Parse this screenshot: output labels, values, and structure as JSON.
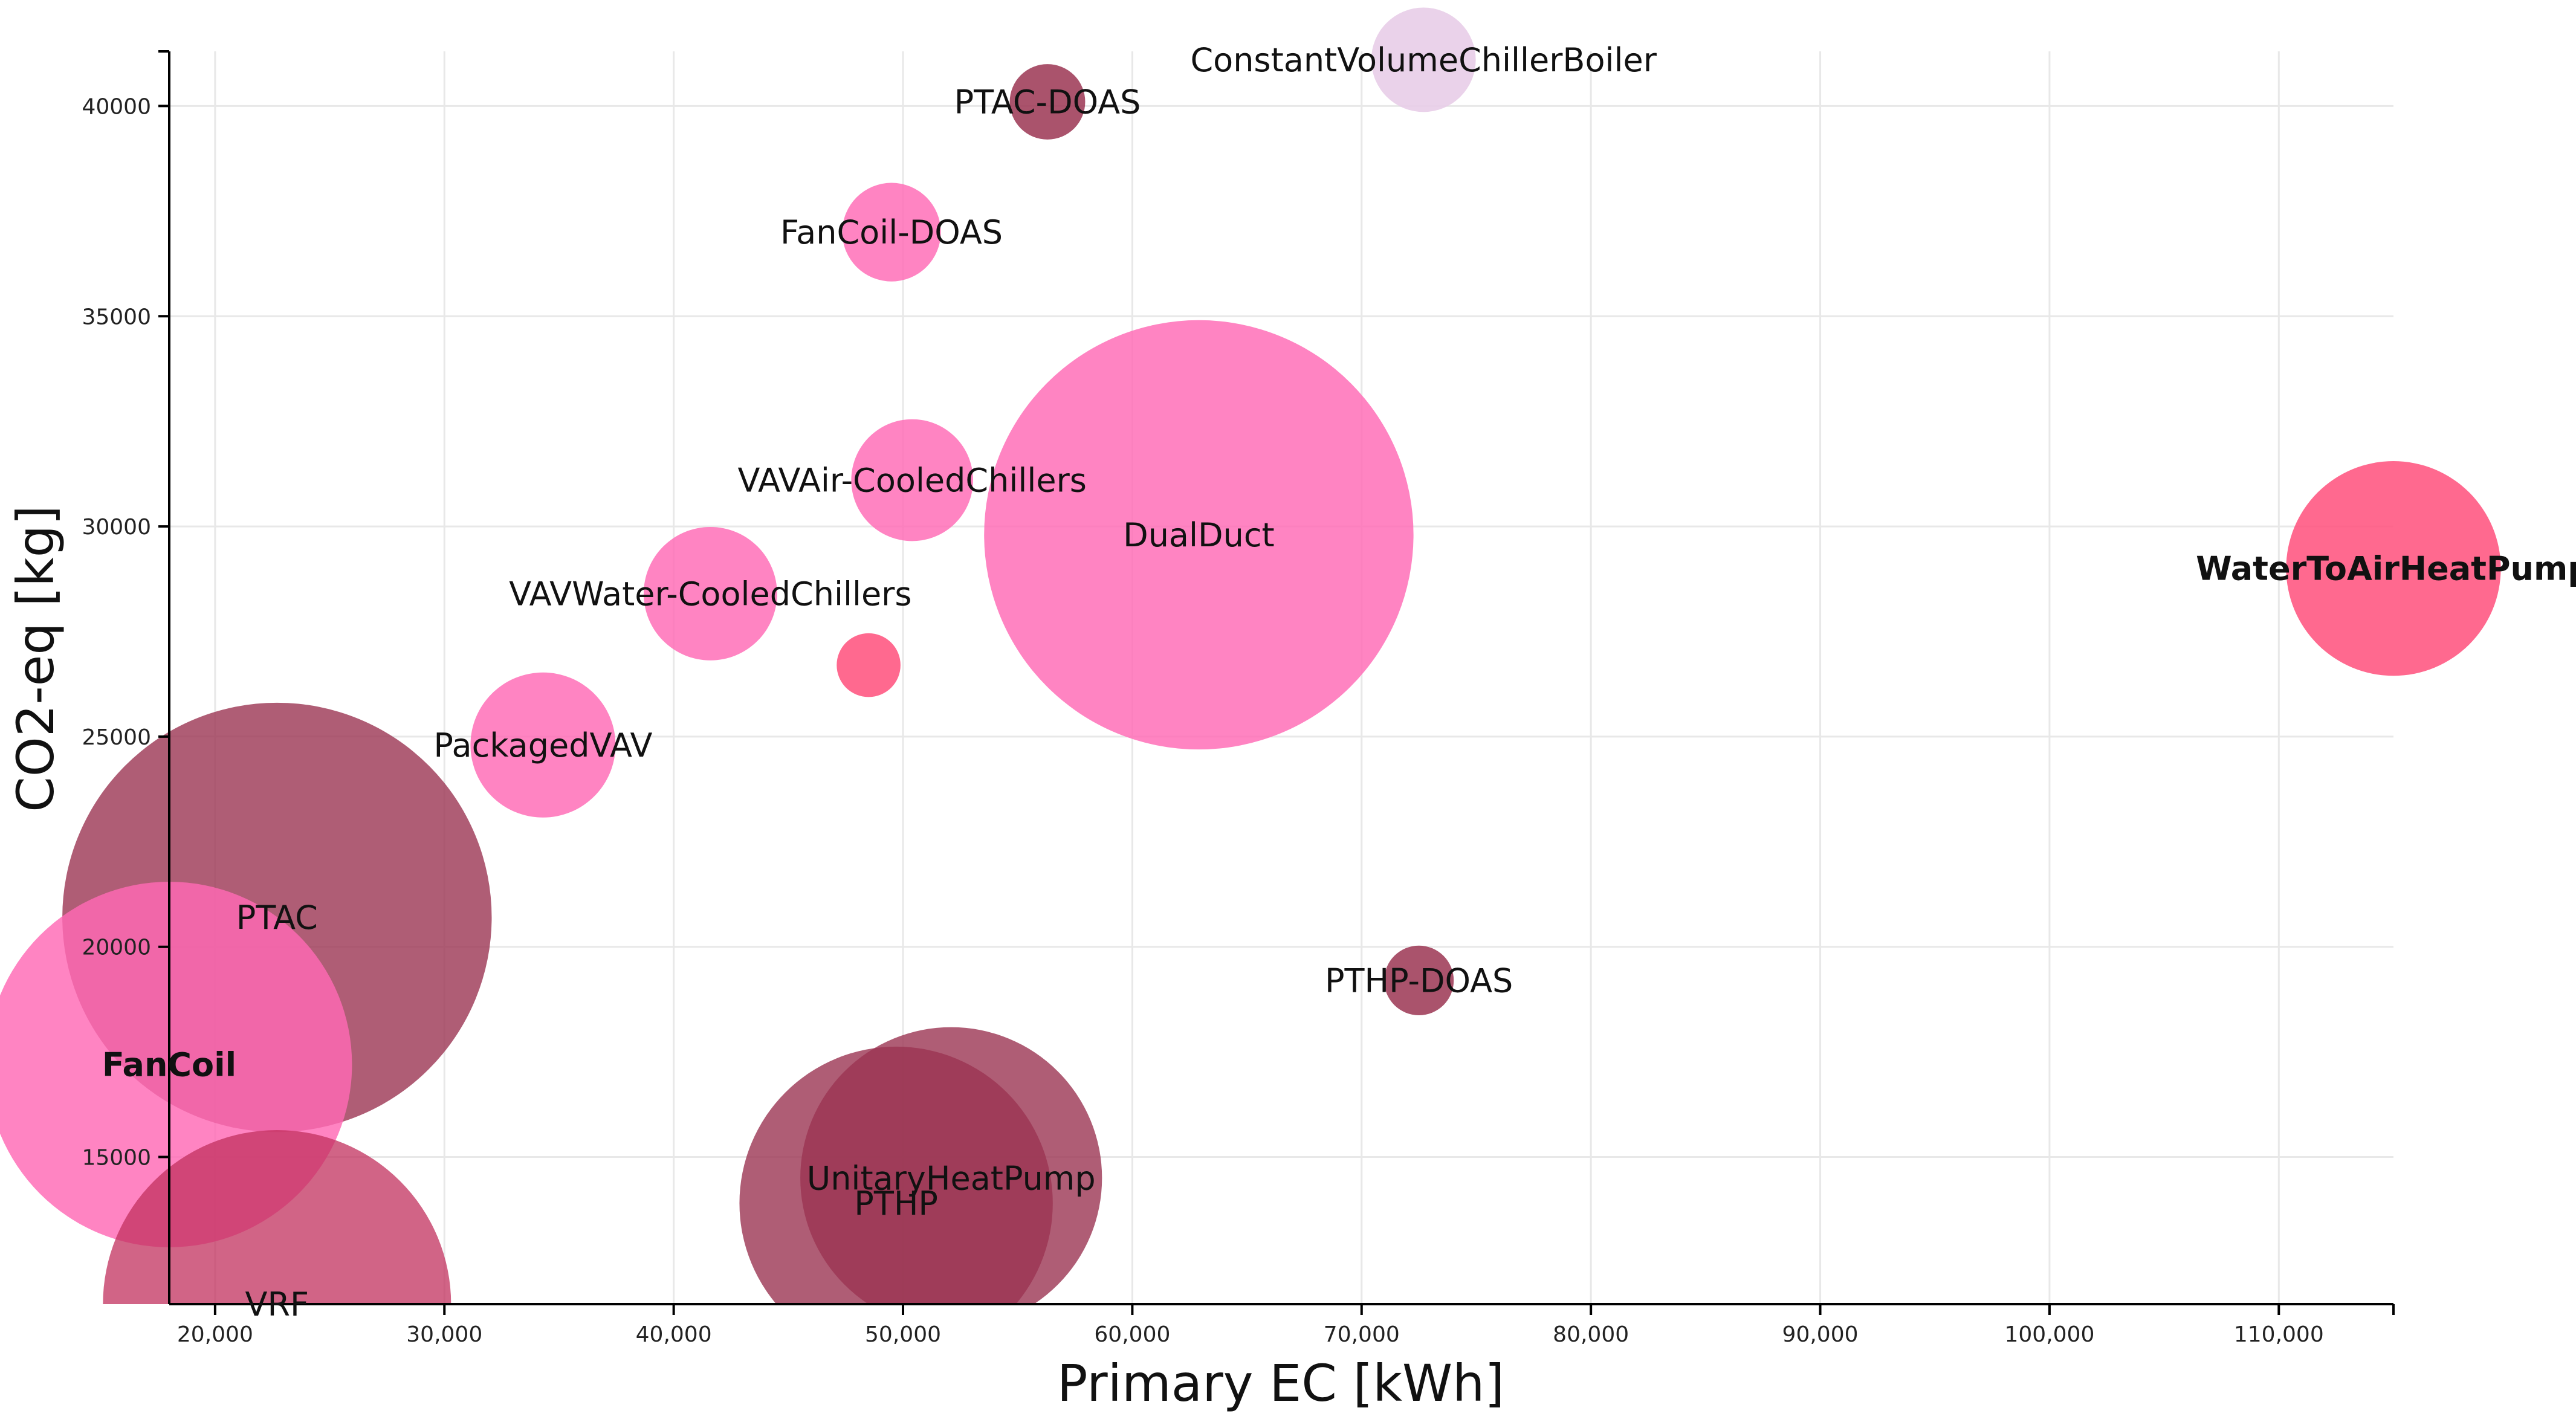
{
  "chart_data": {
    "type": "scatter",
    "subtype": "bubble",
    "title": "",
    "xlabel": "Primary EC [kWh]",
    "ylabel": "CO2-eq [kg]",
    "xlim": [
      18000,
      115000
    ],
    "ylim": [
      11500,
      41300
    ],
    "grid": true,
    "x_ticks": [
      {
        "value": 20000,
        "label": "20,000"
      },
      {
        "value": 30000,
        "label": "30,000"
      },
      {
        "value": 40000,
        "label": "40,000"
      },
      {
        "value": 50000,
        "label": "50,000"
      },
      {
        "value": 60000,
        "label": "60,000"
      },
      {
        "value": 70000,
        "label": "70,000"
      },
      {
        "value": 80000,
        "label": "80,000"
      },
      {
        "value": 90000,
        "label": "90,000"
      },
      {
        "value": 100000,
        "label": "100,000"
      },
      {
        "value": 110000,
        "label": "110,000"
      }
    ],
    "y_ticks": [
      {
        "value": 15000,
        "label": "15000"
      },
      {
        "value": 20000,
        "label": "20000"
      },
      {
        "value": 25000,
        "label": "25000"
      },
      {
        "value": 30000,
        "label": "30000"
      },
      {
        "value": 35000,
        "label": "35000"
      },
      {
        "value": 40000,
        "label": "40000"
      }
    ],
    "points": [
      {
        "name": "ConstantVolumeChillerBoiler",
        "x": 72700,
        "y": 41100,
        "size": 0.9,
        "color": "#e8cde8",
        "opacity": 0.9,
        "bold": false
      },
      {
        "name": "PTAC-DOAS",
        "x": 56300,
        "y": 40100,
        "size": 0.65,
        "color": "#9b3552",
        "opacity": 0.85,
        "bold": false
      },
      {
        "name": "FanCoil-DOAS",
        "x": 49500,
        "y": 37000,
        "size": 0.85,
        "color": "#ff69b4",
        "opacity": 0.82,
        "bold": false
      },
      {
        "name": "VAVAir-CooledChillers",
        "x": 50400,
        "y": 31100,
        "size": 1.05,
        "color": "#ff69b4",
        "opacity": 0.82,
        "bold": false
      },
      {
        "name": "DualDuct",
        "x": 62900,
        "y": 29800,
        "size": 3.7,
        "color": "#ff69b4",
        "opacity": 0.82,
        "bold": false
      },
      {
        "name": "WaterToAirHeatPump",
        "x": 115000,
        "y": 29000,
        "size": 1.85,
        "color": "#ff4f7b",
        "opacity": 0.85,
        "bold": true
      },
      {
        "name": "VAVWater-CooledChillers",
        "x": 41600,
        "y": 28400,
        "size": 1.15,
        "color": "#ff69b4",
        "opacity": 0.82,
        "bold": false
      },
      {
        "name": "",
        "x": 48500,
        "y": 26700,
        "size": 0.55,
        "color": "#ff4f7b",
        "opacity": 0.85,
        "bold": false
      },
      {
        "name": "PackagedVAV",
        "x": 34300,
        "y": 24800,
        "size": 1.25,
        "color": "#ff69b4",
        "opacity": 0.82,
        "bold": false
      },
      {
        "name": "PTAC",
        "x": 22700,
        "y": 20700,
        "size": 3.7,
        "color": "#9b3552",
        "opacity": 0.8,
        "bold": false
      },
      {
        "name": "PTHP-DOAS",
        "x": 72500,
        "y": 19200,
        "size": 0.6,
        "color": "#9b3552",
        "opacity": 0.85,
        "bold": false
      },
      {
        "name": "FanCoil",
        "x": 18000,
        "y": 17200,
        "size": 3.15,
        "color": "#ff69b4",
        "opacity": 0.82,
        "bold": true
      },
      {
        "name": "UnitaryHeatPump",
        "x": 52100,
        "y": 14500,
        "size": 2.6,
        "color": "#9b3552",
        "opacity": 0.8,
        "bold": false
      },
      {
        "name": "PTHP",
        "x": 49700,
        "y": 13900,
        "size": 2.7,
        "color": "#9b3552",
        "opacity": 0.8,
        "bold": false
      },
      {
        "name": "VRF",
        "x": 22700,
        "y": 11500,
        "size": 3.0,
        "color": "#c2305d",
        "opacity": 0.75,
        "bold": false
      }
    ]
  }
}
